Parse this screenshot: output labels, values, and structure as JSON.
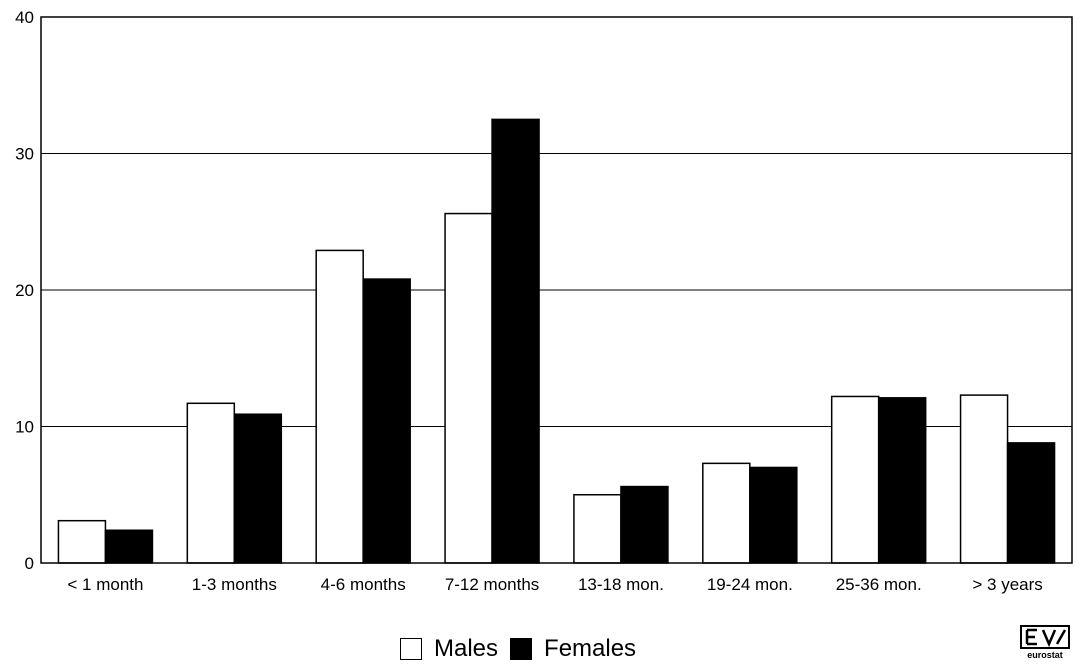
{
  "chart_data": {
    "type": "bar",
    "categories": [
      "< 1 month",
      "1-3 months",
      "4-6 months",
      "7-12 months",
      "13-18 mon.",
      "19-24 mon.",
      "25-36 mon.",
      "> 3 years"
    ],
    "series": [
      {
        "name": "Males",
        "color": "#ffffff",
        "values": [
          3.1,
          11.7,
          22.9,
          25.6,
          5.0,
          7.3,
          12.2,
          12.3
        ]
      },
      {
        "name": "Females",
        "color": "#000000",
        "values": [
          2.4,
          10.9,
          20.8,
          32.5,
          5.6,
          7.0,
          12.1,
          8.8
        ]
      }
    ],
    "title": "",
    "xlabel": "",
    "ylabel": "",
    "ylim": [
      0,
      40
    ],
    "yticks": [
      0,
      10,
      20,
      30,
      40
    ],
    "grid": true,
    "legend": "bottom-center"
  },
  "logo": {
    "text": "eurostat"
  }
}
